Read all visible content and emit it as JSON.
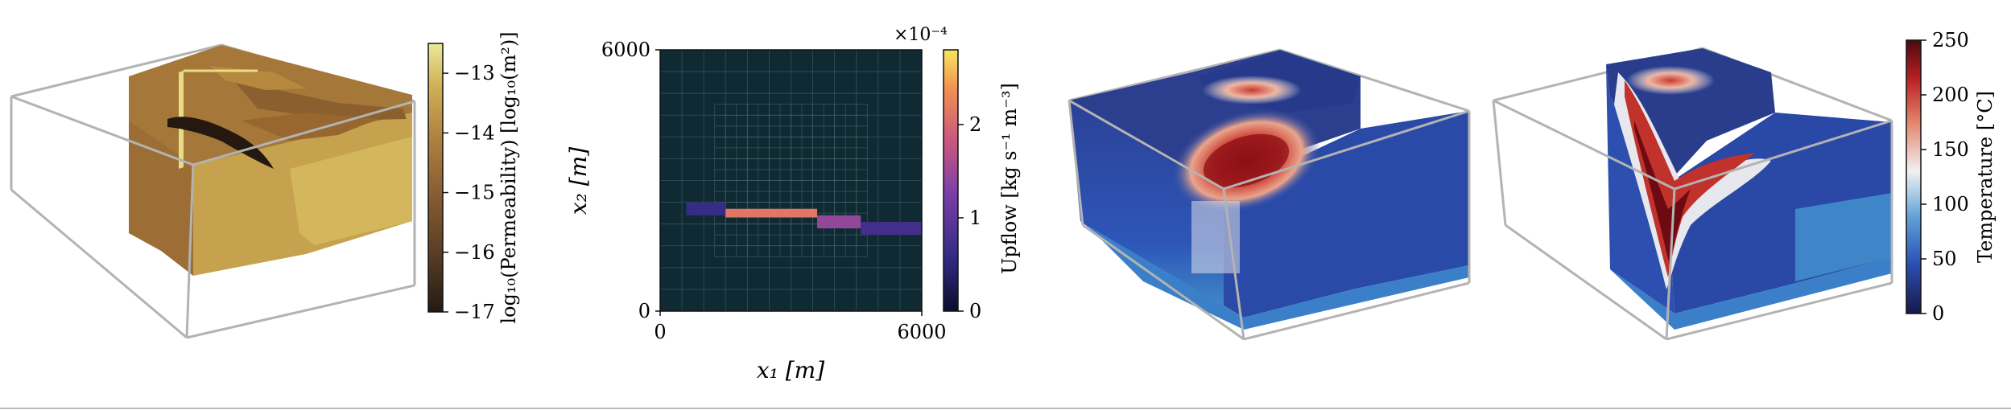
{
  "chart_data": [
    {
      "type": "heatmap",
      "panel": "permeability-3d-block",
      "colorbar": {
        "label": "log₁₀(Permeability) [log₁₀(m²)]",
        "ticks": [
          "−13",
          "−14",
          "−15",
          "−16",
          "−17"
        ],
        "tick_values": [
          -13,
          -14,
          -15,
          -16,
          -17
        ],
        "range": [
          -17,
          -12.5
        ],
        "colors": [
          "#231a13",
          "#5a3e25",
          "#8a5f32",
          "#b0823f",
          "#d2b257",
          "#eaea9a"
        ]
      }
    },
    {
      "type": "heatmap",
      "panel": "upflow-map",
      "xlabel": "x₁ [m]",
      "ylabel": "x₂ [m]",
      "xticks": [
        "0",
        "6000"
      ],
      "yticks": [
        "0",
        "6000"
      ],
      "xlim": [
        0,
        6000
      ],
      "ylim": [
        0,
        6000
      ],
      "background": "#0f2a33",
      "upflow_zone": [
        {
          "x": [
            600,
            1500
          ],
          "y": [
            2200,
            2500
          ],
          "value": 0.6
        },
        {
          "x": [
            1500,
            3600
          ],
          "y": [
            2150,
            2350
          ],
          "value": 2.0
        },
        {
          "x": [
            3600,
            4600
          ],
          "y": [
            1900,
            2200
          ],
          "value": 1.3
        },
        {
          "x": [
            4600,
            6000
          ],
          "y": [
            1750,
            2050
          ],
          "value": 0.7
        }
      ],
      "colorbar": {
        "label": "Upflow [kg s⁻¹ m⁻³]",
        "ticks": [
          "0",
          "1",
          "2"
        ],
        "tick_values": [
          0,
          1,
          2
        ],
        "range": [
          0,
          2.8
        ],
        "exponent_label": "×10⁻⁴",
        "colors": [
          "#0b0d2a",
          "#302a82",
          "#7a3fa6",
          "#c9577f",
          "#f28f52",
          "#f6e75e"
        ]
      }
    },
    {
      "type": "heatmap",
      "panel": "temperature-3d-block-a",
      "hot_zones": [
        "surface-outflow",
        "deep-plume"
      ]
    },
    {
      "type": "heatmap",
      "panel": "temperature-3d-block-b",
      "hot_zones": [
        "surface-outflow",
        "inclined-plume"
      ],
      "colorbar": {
        "label": "Temperature [°C]",
        "ticks": [
          "0",
          "50",
          "100",
          "150",
          "200",
          "250"
        ],
        "tick_values": [
          0,
          50,
          100,
          150,
          200,
          250
        ],
        "range": [
          0,
          250
        ],
        "colors": [
          "#17184a",
          "#2a4fb4",
          "#5ea0d8",
          "#f1f1f1",
          "#e3846c",
          "#b91f23",
          "#4a0b0f"
        ]
      }
    }
  ]
}
